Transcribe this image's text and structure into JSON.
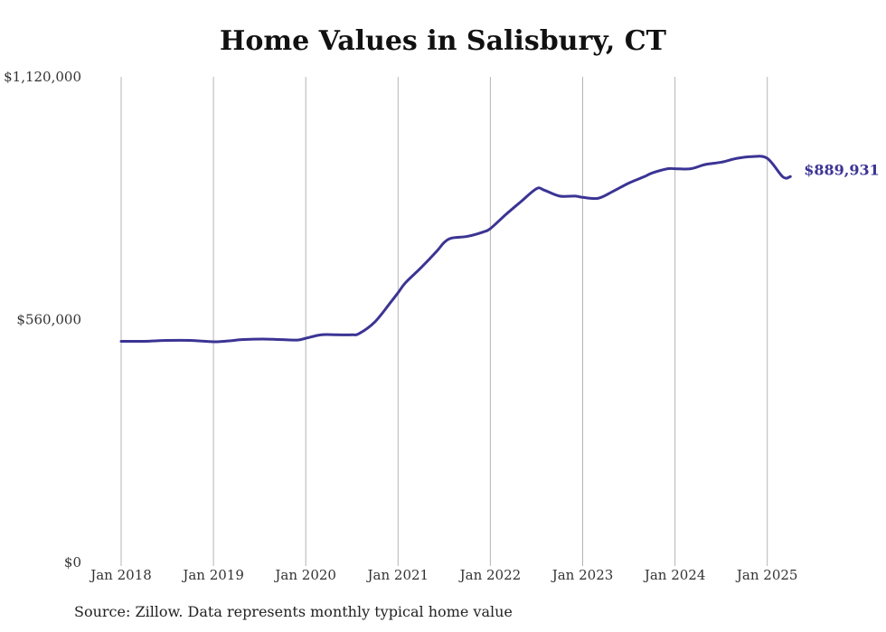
{
  "chart_data": {
    "type": "line",
    "title": "Home Values in Salisbury, CT",
    "xlabel": "",
    "ylabel": "",
    "ylim": [
      0,
      1120000
    ],
    "y_ticks": [
      {
        "value": 0,
        "label": "$0"
      },
      {
        "value": 560000,
        "label": "$560,000"
      },
      {
        "value": 1120000,
        "label": "$1,120,000"
      }
    ],
    "x_ticks": [
      {
        "value": 2018.0,
        "label": "Jan 2018"
      },
      {
        "value": 2019.0,
        "label": "Jan 2019"
      },
      {
        "value": 2020.0,
        "label": "Jan 2020"
      },
      {
        "value": 2021.0,
        "label": "Jan 2021"
      },
      {
        "value": 2022.0,
        "label": "Jan 2022"
      },
      {
        "value": 2023.0,
        "label": "Jan 2023"
      },
      {
        "value": 2024.0,
        "label": "Jan 2024"
      },
      {
        "value": 2025.0,
        "label": "Jan 2025"
      }
    ],
    "grid": "vertical",
    "series": [
      {
        "color": "#3b3494",
        "end_label": "$889,931",
        "x": [
          2018.0,
          2018.25,
          2018.5,
          2018.75,
          2019.0,
          2019.17,
          2019.33,
          2019.58,
          2019.83,
          2019.92,
          2020.0,
          2020.17,
          2020.33,
          2020.5,
          2020.58,
          2020.75,
          2020.92,
          2021.0,
          2021.08,
          2021.25,
          2021.42,
          2021.5,
          2021.58,
          2021.75,
          2021.92,
          2022.0,
          2022.17,
          2022.33,
          2022.5,
          2022.58,
          2022.75,
          2022.92,
          2023.0,
          2023.17,
          2023.33,
          2023.5,
          2023.67,
          2023.75,
          2023.92,
          2024.0,
          2024.17,
          2024.33,
          2024.5,
          2024.67,
          2024.83,
          2025.0,
          2025.17,
          2025.25
        ],
        "values": [
          510000,
          510000,
          512000,
          512000,
          509000,
          511000,
          514000,
          515000,
          513000,
          513000,
          517000,
          525000,
          525000,
          525000,
          528000,
          555000,
          600000,
          622000,
          645000,
          680000,
          718000,
          738000,
          748000,
          752000,
          762000,
          770000,
          803000,
          832000,
          862000,
          859000,
          845000,
          845000,
          842000,
          840000,
          856000,
          875000,
          890000,
          898000,
          908000,
          908000,
          908000,
          918000,
          923000,
          932000,
          936000,
          932000,
          889000,
          889931
        ]
      }
    ]
  },
  "source_note": "Source: Zillow. Data represents monthly typical home value"
}
